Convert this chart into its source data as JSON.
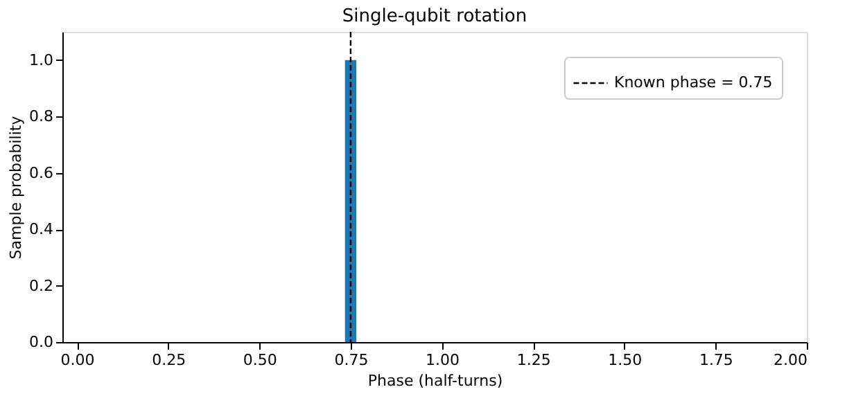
{
  "chart_data": {
    "type": "histogram",
    "title": "Single-qubit rotation",
    "xlabel": "Phase (half-turns)",
    "ylabel": "Sample probability",
    "bins": [
      0.734375,
      0.765625
    ],
    "values": [
      1.0
    ],
    "color": "#1f77b4",
    "xlim": [
      -0.04,
      2.0
    ],
    "xticks": [
      {
        "value": 0,
        "label": "0.00"
      },
      0.25,
      {
        "value": 0.5,
        "label": "0.50"
      },
      0.75,
      {
        "value": 1,
        "label": "1.00"
      },
      1.25,
      {
        "value": 1.5,
        "label": "1.50"
      },
      1.75,
      {
        "value": 2,
        "label": "2.00"
      }
    ],
    "ylim": [
      0,
      1.1
    ],
    "yticks": [
      {
        "value": 0,
        "label": "0.0"
      },
      0.2,
      0.4,
      0.6,
      0.8,
      {
        "value": 1,
        "label": "1.0"
      }
    ],
    "ref_lines": [
      {
        "axis": "x",
        "value": 0.75,
        "label": "Known phase = 0.75",
        "color": "#000000",
        "line_style": "dashed"
      }
    ],
    "legend": "top right",
    "grid": false
  }
}
